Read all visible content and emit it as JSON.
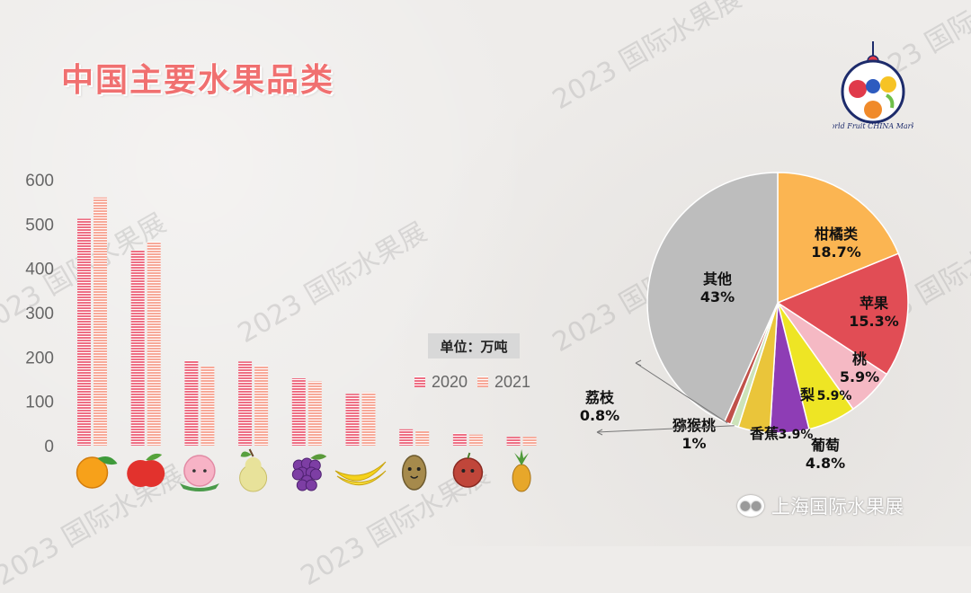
{
  "title": "中国主要水果品类",
  "watermark_text": "2023 国际水果展",
  "footer_text": "上海国际水果展",
  "logo_caption": "World Fruit CHINA Market",
  "chart_data": [
    {
      "type": "bar",
      "unit_label": "单位：万吨",
      "categories": [
        "orange-icon",
        "apple-icon",
        "peach-icon",
        "pear-icon",
        "grape-icon",
        "banana-icon",
        "kiwi-icon",
        "lychee-icon",
        "pineapple-icon"
      ],
      "series": [
        {
          "name": "2020",
          "color": "#ee6f84",
          "values": [
            512,
            441,
            192,
            190,
            152,
            117,
            37,
            28,
            20
          ]
        },
        {
          "name": "2021",
          "color": "#f7a999",
          "values": [
            560,
            460,
            179,
            180,
            145,
            120,
            33,
            25,
            20
          ]
        }
      ],
      "yticks": [
        0,
        100,
        200,
        300,
        400,
        500,
        600
      ],
      "ylim": [
        0,
        600
      ],
      "legend_position": "right"
    },
    {
      "type": "pie",
      "slices": [
        {
          "label": "柑橘类",
          "value": 18.7,
          "display": "18.7%",
          "color": "#fbb552"
        },
        {
          "label": "苹果",
          "value": 15.3,
          "display": "15.3%",
          "color": "#e14d55"
        },
        {
          "label": "桃",
          "value": 5.9,
          "display": "5.9%",
          "color": "#f5b9c4"
        },
        {
          "label": "梨",
          "value": 5.9,
          "display": "5.9%",
          "color": "#eee524"
        },
        {
          "label": "葡萄",
          "value": 4.8,
          "display": "4.8%",
          "color": "#8e3db5"
        },
        {
          "label": "香蕉",
          "value": 3.9,
          "display": "3.9%",
          "color": "#eac53a"
        },
        {
          "label": "猕猴桃",
          "value": 1,
          "display": "1%",
          "color": "#cde3b9"
        },
        {
          "label": "荔枝",
          "value": 0.8,
          "display": "0.8%",
          "color": "#c0514a"
        },
        {
          "label": "其他",
          "value": 43,
          "display": "43%",
          "color": "#bdbdbd"
        }
      ]
    }
  ]
}
